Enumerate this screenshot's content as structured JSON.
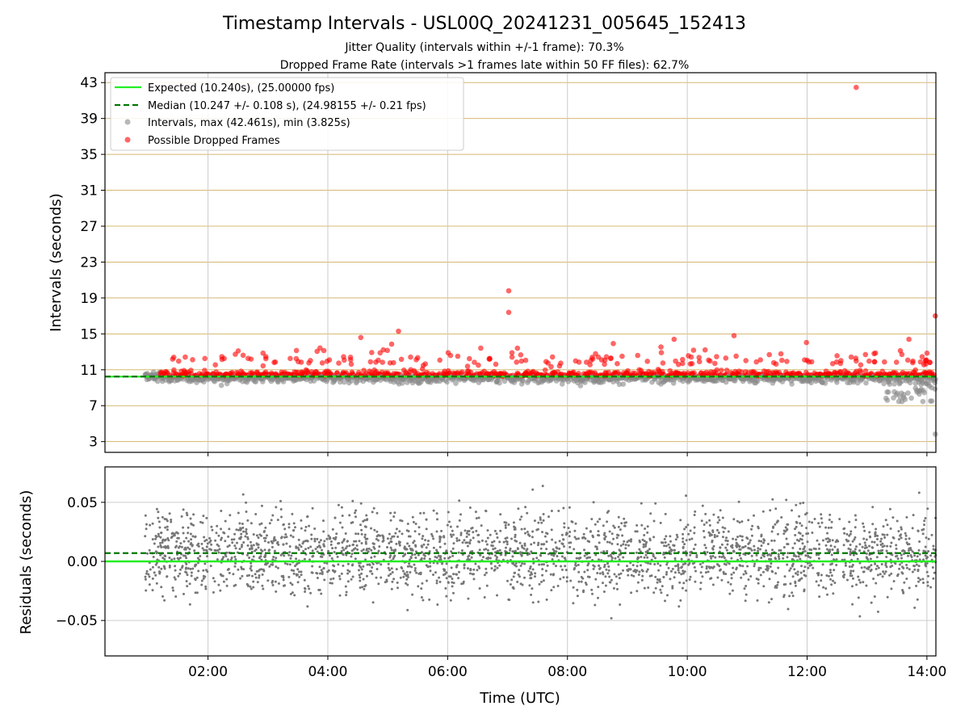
{
  "title": "Timestamp Intervals - USL00Q_20241231_005645_152413",
  "subtitle1": "Jitter Quality (intervals within +/-1 frame): 70.3%",
  "subtitle2": "Dropped Frame Rate (intervals >1 frames late within 50 FF files): 62.7%",
  "colors": {
    "expected": "#22ee22",
    "median": "#007700",
    "intervals": "#888888",
    "dropped": "#ff0000",
    "residuals": "#777777",
    "top_grid_y": "#d4b870",
    "grid": "#cccccc"
  },
  "chart_data": [
    {
      "type": "scatter",
      "panel": "intervals",
      "ylabel": "Intervals (seconds)",
      "xlabel": "",
      "x_unit": "hours (UTC)",
      "xlim": [
        0.28,
        14.15
      ],
      "ylim": [
        1.8,
        44.1
      ],
      "yticks": [
        3,
        7,
        11,
        15,
        19,
        23,
        27,
        31,
        35,
        39,
        43
      ],
      "xticks": [
        "02:00",
        "04:00",
        "06:00",
        "08:00",
        "10:00",
        "12:00",
        "14:00"
      ],
      "grid": true,
      "legend_position": "top-left",
      "legend": [
        "Expected (10.240s), (25.00000 fps)",
        "Median (10.247 +/- 0.108 s), (24.98155 +/- 0.21 fps)",
        "Intervals, max (42.461s), min (3.825s)",
        "Possible Dropped Frames"
      ],
      "expected_interval": 10.24,
      "median_interval": 10.247,
      "max_interval": 42.461,
      "min_interval": 3.825,
      "x_start": 0.95,
      "x_end": 14.15,
      "notable_points": [
        {
          "x": 12.82,
          "y": 42.46,
          "series": "dropped"
        },
        {
          "x": 7.02,
          "y": 19.8,
          "series": "dropped"
        },
        {
          "x": 7.02,
          "y": 17.4,
          "series": "dropped"
        },
        {
          "x": 14.14,
          "y": 17.0,
          "series": "dropped"
        },
        {
          "x": 5.18,
          "y": 15.3,
          "series": "dropped"
        },
        {
          "x": 4.55,
          "y": 14.6,
          "series": "dropped"
        },
        {
          "x": 9.78,
          "y": 14.4,
          "series": "dropped"
        },
        {
          "x": 10.78,
          "y": 14.8,
          "series": "dropped"
        },
        {
          "x": 13.7,
          "y": 14.4,
          "series": "dropped"
        },
        {
          "x": 14.14,
          "y": 3.83,
          "series": "intervals"
        }
      ]
    },
    {
      "type": "scatter",
      "panel": "residuals",
      "ylabel": "Residuals (seconds)",
      "xlabel": "Time (UTC)",
      "xlim": [
        0.28,
        14.15
      ],
      "ylim": [
        -0.08,
        0.08
      ],
      "yticks": [
        0.05,
        0.0,
        -0.05
      ],
      "ytick_labels": [
        "0.05",
        "0.00",
        "−0.05"
      ],
      "xticks": [
        "02:00",
        "04:00",
        "06:00",
        "08:00",
        "10:00",
        "12:00",
        "14:00"
      ],
      "grid": true,
      "expected_residual": 0.0,
      "median_residual": 0.007,
      "residual_std": 0.025
    }
  ]
}
